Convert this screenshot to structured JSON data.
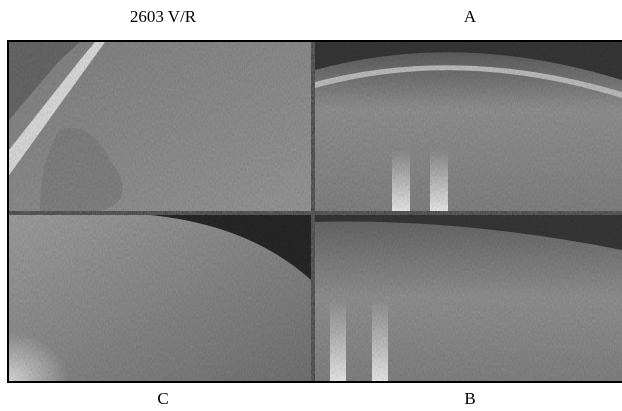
{
  "figure": {
    "panels": [
      {
        "label": "2603 V/R"
      },
      {
        "label": "A"
      },
      {
        "label": "C"
      },
      {
        "label": "B"
      }
    ]
  }
}
